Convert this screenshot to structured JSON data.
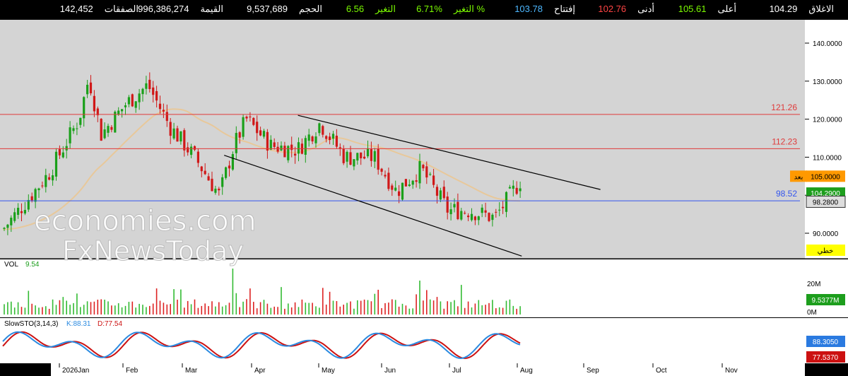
{
  "ticker_bar": [
    {
      "label": "الاغلاق",
      "value": "104.29",
      "label_color": "#ffffff",
      "value_color": "#ffffff"
    },
    {
      "label": "أعلى",
      "value": "105.61",
      "label_color": "#ffffff",
      "value_color": "#7CFC00"
    },
    {
      "label": "أدنى",
      "value": "102.76",
      "label_color": "#ffffff",
      "value_color": "#ff4444"
    },
    {
      "label": "إفتتاح",
      "value": "103.78",
      "label_color": "#ffffff",
      "value_color": "#4db8ff"
    },
    {
      "label": "التغير %",
      "value": "6.71%",
      "label_color": "#7CFC00",
      "value_color": "#7CFC00"
    },
    {
      "label": "التغير",
      "value": "6.56",
      "label_color": "#7CFC00",
      "value_color": "#7CFC00"
    },
    {
      "label": "الحجم",
      "value": "9,537,689",
      "label_color": "#ffffff",
      "value_color": "#ffffff"
    },
    {
      "label": "القيمة",
      "value": "996,386,274",
      "label_color": "#ffffff",
      "value_color": "#ffffff"
    },
    {
      "label": "الصفقات",
      "value": "142,452",
      "label_color": "#ffffff",
      "value_color": "#ffffff"
    }
  ],
  "price_axis": {
    "ticks": [
      "140.0000",
      "130.0000",
      "120.0000",
      "110.0000",
      "100.0000",
      "90.0000"
    ]
  },
  "horizontal_levels": [
    {
      "label": "121.26",
      "value": 121.26,
      "color": "#e03a3a"
    },
    {
      "label": "112.23",
      "value": 112.23,
      "color": "#e03a3a"
    },
    {
      "label": "98.52",
      "value": 98.52,
      "color": "#3355ee"
    }
  ],
  "price_tags": [
    {
      "text": "105.0000",
      "prefix": "بعد",
      "value": 105.0,
      "bg": "#ff9900",
      "fg": "#000000"
    },
    {
      "text": "104.2900",
      "value": 104.29,
      "bg": "#1d9e1d",
      "fg": "#ffffff"
    },
    {
      "text": "98.2800",
      "value": 98.28,
      "bg": "#dddddd",
      "fg": "#000000"
    },
    {
      "text": "خطي",
      "bg": "#ffff00",
      "fg": "#000000"
    }
  ],
  "watermark": {
    "line1": "economies.com",
    "line2": "FxNewsToday"
  },
  "volume_panel": {
    "title": "VOL",
    "value": "9.54",
    "ticks": [
      "20M",
      "0M"
    ],
    "current_tag": {
      "text": "9.5377M",
      "bg": "#1d9e1d",
      "fg": "#ffffff"
    }
  },
  "stoch_panel": {
    "title": "SlowSTO(3,14,3)",
    "k_label": "K:88.31",
    "d_label": "D:77.54",
    "k_tag": {
      "text": "88.3050",
      "bg": "#2a7ae0",
      "fg": "#ffffff"
    },
    "d_tag": {
      "text": "77.5370",
      "bg": "#cc1111",
      "fg": "#ffffff"
    },
    "k_color": "#2a8ae0",
    "d_color": "#cc1111"
  },
  "time_axis": {
    "labels": [
      "2026Jan",
      "Feb",
      "Mar",
      "Apr",
      "May",
      "Jun",
      "Jul",
      "Aug",
      "Sep",
      "Oct",
      "Nov"
    ]
  },
  "chart_data": {
    "type": "candlestick",
    "ylim": [
      84,
      145
    ],
    "grid": false,
    "moving_average": {
      "color": "#e8c89a"
    },
    "trendlines": [
      {
        "from": [
          "May 1",
          121.0
        ],
        "to": [
          "Sep 1",
          101.5
        ]
      },
      {
        "from": [
          "Apr 1",
          110.5
        ],
        "to": [
          "Jul 31",
          84.0
        ]
      }
    ],
    "approx_close_path": [
      [
        "Jan 1",
        91
      ],
      [
        "Jan 10",
        98
      ],
      [
        "Jan 20",
        106
      ],
      [
        "Feb 1",
        120
      ],
      [
        "Feb 5",
        131
      ],
      [
        "Feb 10",
        116
      ],
      [
        "Feb 20",
        124
      ],
      [
        "Mar 1",
        129
      ],
      [
        "Mar 10",
        118
      ],
      [
        "Mar 20",
        110
      ],
      [
        "Mar 30",
        100
      ],
      [
        "Apr 5",
        113
      ],
      [
        "Apr 10",
        120
      ],
      [
        "Apr 20",
        113
      ],
      [
        "May 1",
        112
      ],
      [
        "May 10",
        119
      ],
      [
        "May 20",
        110
      ],
      [
        "Jun 1",
        110
      ],
      [
        "Jun 10",
        101
      ],
      [
        "Jun 20",
        107
      ],
      [
        "Jul 1",
        96
      ],
      [
        "Jul 10",
        96
      ],
      [
        "Jul 20",
        94
      ],
      [
        "Jul 31",
        104.29
      ]
    ]
  }
}
